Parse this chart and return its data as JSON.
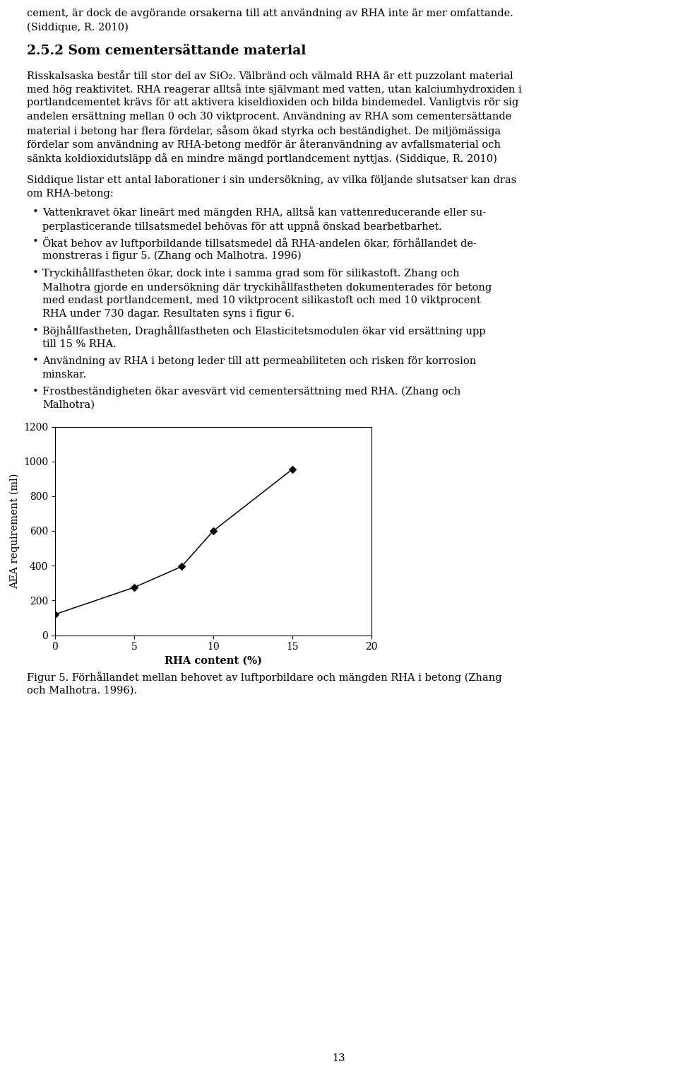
{
  "page_background": "#ffffff",
  "text_color": "#000000",
  "top_text_lines": [
    "cement, är dock de avgörande orsakerna till att användning av RHA inte är mer omfattande.",
    "(Siddique, R. 2010)"
  ],
  "section_title": "2.5.2 Som cementersättande material",
  "chart_x": [
    0,
    5,
    8,
    10,
    15
  ],
  "chart_y": [
    120,
    275,
    395,
    600,
    955
  ],
  "chart_xlabel": "RHA content (%)",
  "chart_ylabel": "AEA requirement (ml)",
  "chart_xlim": [
    0,
    20
  ],
  "chart_ylim": [
    0,
    1200
  ],
  "chart_xticks": [
    0,
    5,
    10,
    15,
    20
  ],
  "chart_yticks": [
    0,
    200,
    400,
    600,
    800,
    1000,
    1200
  ],
  "chart_line_color": "#000000",
  "chart_marker": "D",
  "chart_marker_size": 5,
  "chart_marker_color": "#000000",
  "page_number": "13",
  "font_size_body": 10.5,
  "font_size_section": 13.5,
  "font_size_caption": 10.5,
  "font_size_axis_label": 10.5,
  "font_size_tick": 10.0,
  "font_size_page_number": 10.5,
  "ml": 38,
  "mr": 922,
  "para1_lines": [
    "Risskalsaska består till stor del av SiO₂. Välbränd och välmald RHA är ett puzzolant material",
    "med hög reaktivitet. RHA reagerar alltså inte självmant med vatten, utan kalciumhydroxiden i",
    "portlandcementet krävs för att aktivera kiseldioxiden och bilda bindemedel. Vanligtvis rör sig",
    "andelen ersättning mellan 0 och 30 viktprocent. Användning av RHA som cementersättande",
    "material i betong har flera fördelar, såsom ökad styrka och beständighet. De miljömässiga",
    "fördelar som användning av RHA-betong medför är återanvändning av avfallsmaterial och",
    "sänkta koldioxidutsläpp då en mindre mängd portlandcement nyttjas. (Siddique, R. 2010)"
  ],
  "para2_lines": [
    "Siddique listar ett antal laborationer i sin undersökning, av vilka följande slutsatser kan dras",
    "om RHA-betong:"
  ],
  "bullets": [
    [
      "Vattenkravet ökar lineärt med mängden RHA, alltså kan vattenreducerande eller su-",
      "perplasticerande tillsatsmedel behövas för att uppnå önskad bearbetbarhet."
    ],
    [
      "Ökat behov av luftporbildande tillsatsmedel då RHA-andelen ökar, förhållandet de-",
      "monstreras i figur 5. (Zhang och Malhotra. 1996)"
    ],
    [
      "Tryckihållfastheten ökar, dock inte i samma grad som för silikastoft. Zhang och",
      "Malhotra gjorde en undersökning där tryckihållfastheten dokumenterades för betong",
      "med endast portlandcement, med 10 viktprocent silikastoft och med 10 viktprocent",
      "RHA under 730 dagar. Resultaten syns i figur 6."
    ],
    [
      "Böjhållfastheten, Draghållfastheten och Elasticitetsmodulen ökar vid ersättning upp",
      "till 15 % RHA."
    ],
    [
      "Användning av RHA i betong leder till att permeabiliteten och risken för korrosion",
      "minskar."
    ],
    [
      "Frostbeständigheten ökar avesvärt vid cementersättning med RHA. (Zhang och",
      "Malhotra)"
    ]
  ],
  "caption_lines": [
    "Figur 5. Förhållandet mellan behovet av luftporbildare och mängden RHA i betong (Zhang",
    "och Malhotra. 1996)."
  ]
}
